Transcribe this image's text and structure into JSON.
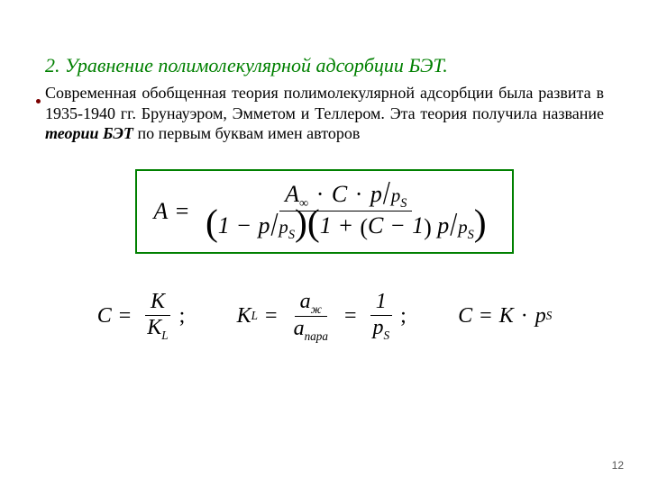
{
  "heading": "2. Уравнение полимолекулярной адсорбции БЭТ.",
  "paragraph_before_em": "Современная обобщенная теория полимолекулярной адсорбции была развита в 1935-1940 гг. Брунауэром, Эмметом и Теллером. Эта теория получила название ",
  "paragraph_em": "теории БЭТ",
  "paragraph_after_em": " по первым буквам имен авторов",
  "eq_main": {
    "lhs": "A",
    "num_A": "A",
    "num_inf": "∞",
    "num_C": "C",
    "num_p": "p",
    "num_ps_p": "p",
    "num_ps_s": "S",
    "den_one": "1",
    "den_p1": "p",
    "den_ps1_p": "p",
    "den_ps1_s": "S",
    "den_one2": "1",
    "den_C": "C",
    "den_minus1": "1",
    "den_p2": "p",
    "den_ps2_p": "p",
    "den_ps2_s": "S"
  },
  "eq2": {
    "C": "C",
    "K": "К",
    "KL_K": "K",
    "KL_L": "L",
    "semicolon": ";"
  },
  "eq3": {
    "KL_K": "K",
    "KL_L": "L",
    "a_zh_a": "a",
    "a_zh_sub": "ж",
    "a_para_a": "a",
    "a_para_sub": "пара",
    "one": "1",
    "p": "p",
    "S": "S",
    "semicolon": ";"
  },
  "eq4": {
    "C": "C",
    "K": "K",
    "p": "p",
    "S": "S"
  },
  "pagenum": "12",
  "colors": {
    "heading": "#008000",
    "box_border": "#008000",
    "text": "#000000",
    "background": "#ffffff"
  }
}
